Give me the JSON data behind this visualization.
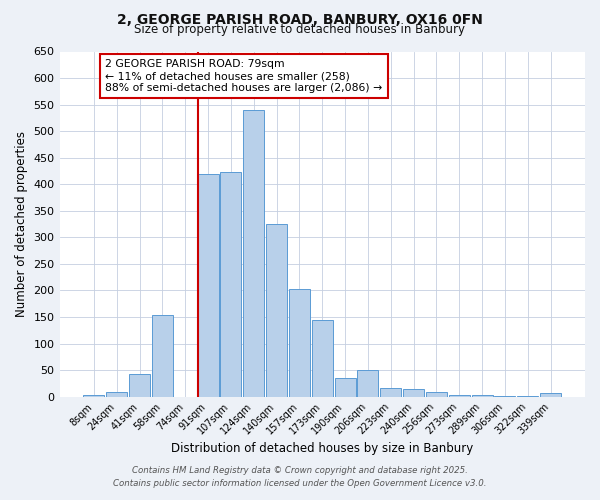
{
  "title_line1": "2, GEORGE PARISH ROAD, BANBURY, OX16 0FN",
  "title_line2": "Size of property relative to detached houses in Banbury",
  "xlabel": "Distribution of detached houses by size in Banbury",
  "ylabel": "Number of detached properties",
  "categories": [
    "8sqm",
    "24sqm",
    "41sqm",
    "58sqm",
    "74sqm",
    "91sqm",
    "107sqm",
    "124sqm",
    "140sqm",
    "157sqm",
    "173sqm",
    "190sqm",
    "206sqm",
    "223sqm",
    "240sqm",
    "256sqm",
    "273sqm",
    "289sqm",
    "306sqm",
    "322sqm",
    "339sqm"
  ],
  "values": [
    3,
    8,
    43,
    153,
    0,
    420,
    423,
    540,
    325,
    203,
    145,
    35,
    50,
    17,
    15,
    8,
    4,
    3,
    2,
    2,
    7
  ],
  "bar_color": "#b8d0ea",
  "bar_edge_color": "#5b9bd5",
  "vline_x_index": 5,
  "vline_color": "#cc0000",
  "ylim": [
    0,
    650
  ],
  "yticks": [
    0,
    50,
    100,
    150,
    200,
    250,
    300,
    350,
    400,
    450,
    500,
    550,
    600,
    650
  ],
  "annotation_text": "2 GEORGE PARISH ROAD: 79sqm\n← 11% of detached houses are smaller (258)\n88% of semi-detached houses are larger (2,086) →",
  "annotation_box_color": "#ffffff",
  "annotation_box_edge": "#cc0000",
  "footer_line1": "Contains HM Land Registry data © Crown copyright and database right 2025.",
  "footer_line2": "Contains public sector information licensed under the Open Government Licence v3.0.",
  "bg_color": "#edf1f7",
  "plot_bg_color": "#ffffff",
  "grid_color": "#c5cfe0"
}
